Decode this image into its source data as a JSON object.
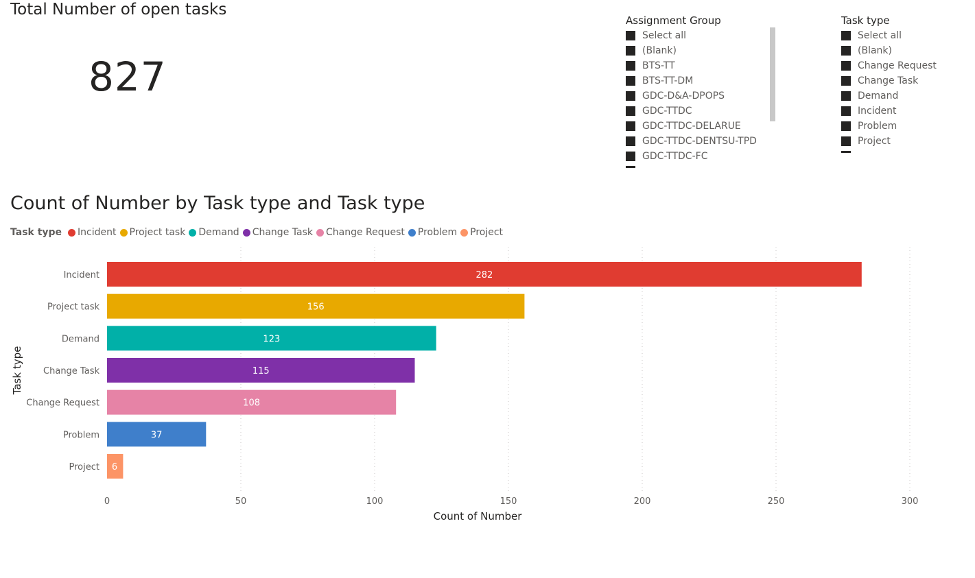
{
  "kpi": {
    "title": "Total Number of open tasks",
    "value": "827"
  },
  "assignment_slicer": {
    "title": "Assignment Group",
    "items": [
      "Select all",
      "(Blank)",
      "BTS-TT",
      "BTS-TT-DM",
      "GDC-D&A-DPOPS",
      "GDC-TTDC",
      "GDC-TTDC-DELARUE",
      "GDC-TTDC-DENTSU-TPD",
      "GDC-TTDC-FC"
    ]
  },
  "tasktype_slicer": {
    "title": "Task type",
    "items": [
      "Select all",
      "(Blank)",
      "Change Request",
      "Change Task",
      "Demand",
      "Incident",
      "Problem",
      "Project"
    ]
  },
  "chart_title": "Count of Number by Task type and Task type",
  "legend": {
    "title": "Task type",
    "items": [
      {
        "label": "Incident",
        "color": "#e03c31"
      },
      {
        "label": "Project task",
        "color": "#e8a900"
      },
      {
        "label": "Demand",
        "color": "#01b0a8"
      },
      {
        "label": "Change Task",
        "color": "#7f30a8"
      },
      {
        "label": "Change Request",
        "color": "#e683a6"
      },
      {
        "label": "Problem",
        "color": "#3f7fcb"
      },
      {
        "label": "Project",
        "color": "#fc9466"
      }
    ]
  },
  "chart_data": {
    "type": "bar",
    "orientation": "horizontal",
    "categories": [
      "Incident",
      "Project task",
      "Demand",
      "Change Task",
      "Change Request",
      "Problem",
      "Project"
    ],
    "values": [
      282,
      156,
      123,
      115,
      108,
      37,
      6
    ],
    "colors": [
      "#e03c31",
      "#e8a900",
      "#01b0a8",
      "#7f30a8",
      "#e683a6",
      "#3f7fcb",
      "#fc9466"
    ],
    "xlabel": "Count of Number",
    "ylabel": "Task type",
    "xlim": [
      0,
      300
    ],
    "xticks": [
      0,
      50,
      100,
      150,
      200,
      250,
      300
    ],
    "grid": "vertical dotted",
    "data_labels": true
  }
}
